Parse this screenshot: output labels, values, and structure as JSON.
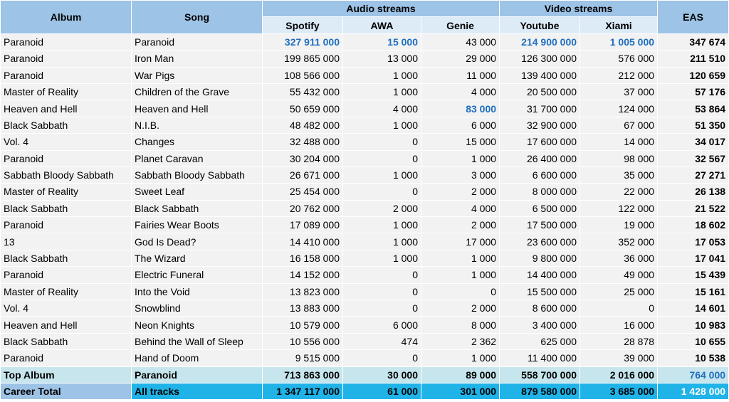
{
  "header": {
    "album": "Album",
    "song": "Song",
    "audio_streams": "Audio streams",
    "video_streams": "Video streams",
    "eas": "EAS",
    "spotify": "Spotify",
    "awa": "AWA",
    "genie": "Genie",
    "youtube": "Youtube",
    "xiami": "Xiami"
  },
  "rows": [
    {
      "album": "Paranoid",
      "song": "Paranoid",
      "spotify": "327 911 000",
      "awa": "15 000",
      "genie": "43 000",
      "youtube": "214 900 000",
      "xiami": "1 005 000",
      "eas": "347 674"
    },
    {
      "album": "Paranoid",
      "song": "Iron Man",
      "spotify": "199 865 000",
      "awa": "13 000",
      "genie": "29 000",
      "youtube": "126 300 000",
      "xiami": "576 000",
      "eas": "211 510"
    },
    {
      "album": "Paranoid",
      "song": "War Pigs",
      "spotify": "108 566 000",
      "awa": "1 000",
      "genie": "11 000",
      "youtube": "139 400 000",
      "xiami": "212 000",
      "eas": "120 659"
    },
    {
      "album": "Master of Reality",
      "song": "Children of the Grave",
      "spotify": "55 432 000",
      "awa": "1 000",
      "genie": "4 000",
      "youtube": "20 500 000",
      "xiami": "37 000",
      "eas": "57 176"
    },
    {
      "album": "Heaven and Hell",
      "song": "Heaven and Hell",
      "spotify": "50 659 000",
      "awa": "4 000",
      "genie": "83 000",
      "youtube": "31 700 000",
      "xiami": "124 000",
      "eas": "53 864"
    },
    {
      "album": "Black Sabbath",
      "song": "N.I.B.",
      "spotify": "48 482 000",
      "awa": "1 000",
      "genie": "6 000",
      "youtube": "32 900 000",
      "xiami": "67 000",
      "eas": "51 350"
    },
    {
      "album": "Vol. 4",
      "song": "Changes",
      "spotify": "32 488 000",
      "awa": "0",
      "genie": "15 000",
      "youtube": "17 600 000",
      "xiami": "14 000",
      "eas": "34 017"
    },
    {
      "album": "Paranoid",
      "song": "Planet Caravan",
      "spotify": "30 204 000",
      "awa": "0",
      "genie": "1 000",
      "youtube": "26 400 000",
      "xiami": "98 000",
      "eas": "32 567"
    },
    {
      "album": "Sabbath Bloody Sabbath",
      "song": "Sabbath Bloody Sabbath",
      "spotify": "26 671 000",
      "awa": "1 000",
      "genie": "3 000",
      "youtube": "6 600 000",
      "xiami": "35 000",
      "eas": "27 271"
    },
    {
      "album": "Master of Reality",
      "song": "Sweet Leaf",
      "spotify": "25 454 000",
      "awa": "0",
      "genie": "2 000",
      "youtube": "8 000 000",
      "xiami": "22 000",
      "eas": "26 138"
    },
    {
      "album": "Black Sabbath",
      "song": "Black Sabbath",
      "spotify": "20 762 000",
      "awa": "2 000",
      "genie": "4 000",
      "youtube": "6 500 000",
      "xiami": "122 000",
      "eas": "21 522"
    },
    {
      "album": "Paranoid",
      "song": "Fairies Wear Boots",
      "spotify": "17 089 000",
      "awa": "1 000",
      "genie": "2 000",
      "youtube": "17 500 000",
      "xiami": "19 000",
      "eas": "18 602"
    },
    {
      "album": "13",
      "song": "God Is Dead?",
      "spotify": "14 410 000",
      "awa": "1 000",
      "genie": "17 000",
      "youtube": "23 600 000",
      "xiami": "352 000",
      "eas": "17 053"
    },
    {
      "album": "Black Sabbath",
      "song": "The Wizard",
      "spotify": "16 158 000",
      "awa": "1 000",
      "genie": "1 000",
      "youtube": "9 800 000",
      "xiami": "36 000",
      "eas": "17 041"
    },
    {
      "album": "Paranoid",
      "song": "Electric Funeral",
      "spotify": "14 152 000",
      "awa": "0",
      "genie": "1 000",
      "youtube": "14 400 000",
      "xiami": "49 000",
      "eas": "15 439"
    },
    {
      "album": "Master of Reality",
      "song": "Into the Void",
      "spotify": "13 823 000",
      "awa": "0",
      "genie": "0",
      "youtube": "15 500 000",
      "xiami": "25 000",
      "eas": "15 161"
    },
    {
      "album": "Vol. 4",
      "song": "Snowblind",
      "spotify": "13 883 000",
      "awa": "0",
      "genie": "2 000",
      "youtube": "8 600 000",
      "xiami": "0",
      "eas": "14 601"
    },
    {
      "album": "Heaven and Hell",
      "song": "Neon Knights",
      "spotify": "10 579 000",
      "awa": "6 000",
      "genie": "8 000",
      "youtube": "3 400 000",
      "xiami": "16 000",
      "eas": "10 983"
    },
    {
      "album": "Black Sabbath",
      "song": "Behind the Wall of Sleep",
      "spotify": "10 556 000",
      "awa": "474",
      "genie": "2 362",
      "youtube": "625 000",
      "xiami": "28 878",
      "eas": "10 655"
    },
    {
      "album": "Paranoid",
      "song": "Hand of Doom",
      "spotify": "9 515 000",
      "awa": "0",
      "genie": "1 000",
      "youtube": "11 400 000",
      "xiami": "39 000",
      "eas": "10 538"
    }
  ],
  "top_album": {
    "label": "Top Album",
    "song": "Paranoid",
    "spotify": "713 863 000",
    "awa": "30 000",
    "genie": "89 000",
    "youtube": "558 700 000",
    "xiami": "2 016 000",
    "eas": "764 000"
  },
  "career_total": {
    "label": "Career Total",
    "song": "All tracks",
    "spotify": "1 347 117 000",
    "awa": "61 000",
    "genie": "301 000",
    "youtube": "879 580 000",
    "xiami": "3 685 000",
    "eas": "1 428 000"
  },
  "highlight_color": "#1f6fc0"
}
